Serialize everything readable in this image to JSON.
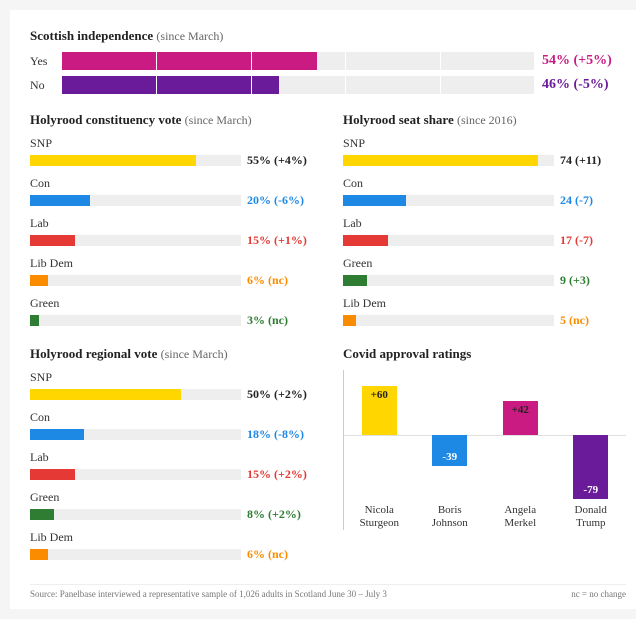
{
  "colors": {
    "yes": "#c91b82",
    "no": "#6a1b9a",
    "snp": "#ffd600",
    "con": "#1e88e5",
    "lab": "#e53935",
    "libdem": "#fb8c00",
    "green": "#2e7d32",
    "track": "#eeeeee",
    "text": "#222222",
    "muted": "#666666"
  },
  "independence": {
    "title": "Scottish independence",
    "since": "(since March)",
    "max": 100,
    "ticks": [
      20,
      40,
      60,
      80
    ],
    "rows": [
      {
        "label": "Yes",
        "value": 54,
        "change": "(+5%)",
        "color_key": "yes",
        "text": "54%"
      },
      {
        "label": "No",
        "value": 46,
        "change": "(-5%)",
        "color_key": "no",
        "text": "46%"
      }
    ]
  },
  "constituency": {
    "title": "Holyrood constituency vote",
    "since": "(since March)",
    "max": 70,
    "rows": [
      {
        "label": "SNP",
        "value": 55,
        "text": "55%",
        "change": "(+4%)",
        "color_key": "snp",
        "val_color": "#222222"
      },
      {
        "label": "Con",
        "value": 20,
        "text": "20%",
        "change": "(-6%)",
        "color_key": "con",
        "val_color": "#1e88e5"
      },
      {
        "label": "Lab",
        "value": 15,
        "text": "15%",
        "change": "(+1%)",
        "color_key": "lab",
        "val_color": "#e53935"
      },
      {
        "label": "Lib Dem",
        "value": 6,
        "text": "6%",
        "change": "(nc)",
        "color_key": "libdem",
        "val_color": "#fb8c00"
      },
      {
        "label": "Green",
        "value": 3,
        "text": "3%",
        "change": "(nc)",
        "color_key": "green",
        "val_color": "#2e7d32"
      }
    ]
  },
  "seat_share": {
    "title": "Holyrood seat share",
    "since": "(since 2016)",
    "max": 80,
    "rows": [
      {
        "label": "SNP",
        "value": 74,
        "text": "74",
        "change": "(+11)",
        "color_key": "snp",
        "val_color": "#222222"
      },
      {
        "label": "Con",
        "value": 24,
        "text": "24",
        "change": "(-7)",
        "color_key": "con",
        "val_color": "#1e88e5"
      },
      {
        "label": "Lab",
        "value": 17,
        "text": "17",
        "change": "(-7)",
        "color_key": "lab",
        "val_color": "#e53935"
      },
      {
        "label": "Green",
        "value": 9,
        "text": "9",
        "change": "(+3)",
        "color_key": "green",
        "val_color": "#2e7d32"
      },
      {
        "label": "Lib Dem",
        "value": 5,
        "text": "5",
        "change": "(nc)",
        "color_key": "libdem",
        "val_color": "#fb8c00"
      }
    ]
  },
  "regional": {
    "title": "Holyrood regional vote",
    "since": "(since March)",
    "max": 70,
    "rows": [
      {
        "label": "SNP",
        "value": 50,
        "text": "50%",
        "change": "(+2%)",
        "color_key": "snp",
        "val_color": "#222222"
      },
      {
        "label": "Con",
        "value": 18,
        "text": "18%",
        "change": "(-8%)",
        "color_key": "con",
        "val_color": "#1e88e5"
      },
      {
        "label": "Lab",
        "value": 15,
        "text": "15%",
        "change": "(+2%)",
        "color_key": "lab",
        "val_color": "#e53935"
      },
      {
        "label": "Green",
        "value": 8,
        "text": "8%",
        "change": "(+2%)",
        "color_key": "green",
        "val_color": "#2e7d32"
      },
      {
        "label": "Lib Dem",
        "value": 6,
        "text": "6%",
        "change": "(nc)",
        "color_key": "libdem",
        "val_color": "#fb8c00"
      }
    ]
  },
  "covid": {
    "title": "Covid approval ratings",
    "range": 80,
    "leaders": [
      {
        "first": "Nicola",
        "last": "Sturgeon",
        "value": 60,
        "label": "+60",
        "color_key": "snp"
      },
      {
        "first": "Boris",
        "last": "Johnson",
        "value": -39,
        "label": "-39",
        "color_key": "con"
      },
      {
        "first": "Angela",
        "last": "Merkel",
        "value": 42,
        "label": "+42",
        "color_key": "yes"
      },
      {
        "first": "Donald",
        "last": "Trump",
        "value": -79,
        "label": "-79",
        "color_key": "no"
      }
    ]
  },
  "footer": {
    "source": "Source: Panelbase interviewed a representative sample of 1,026 adults in Scotland June 30 – July 3",
    "nc": "nc = no change"
  }
}
